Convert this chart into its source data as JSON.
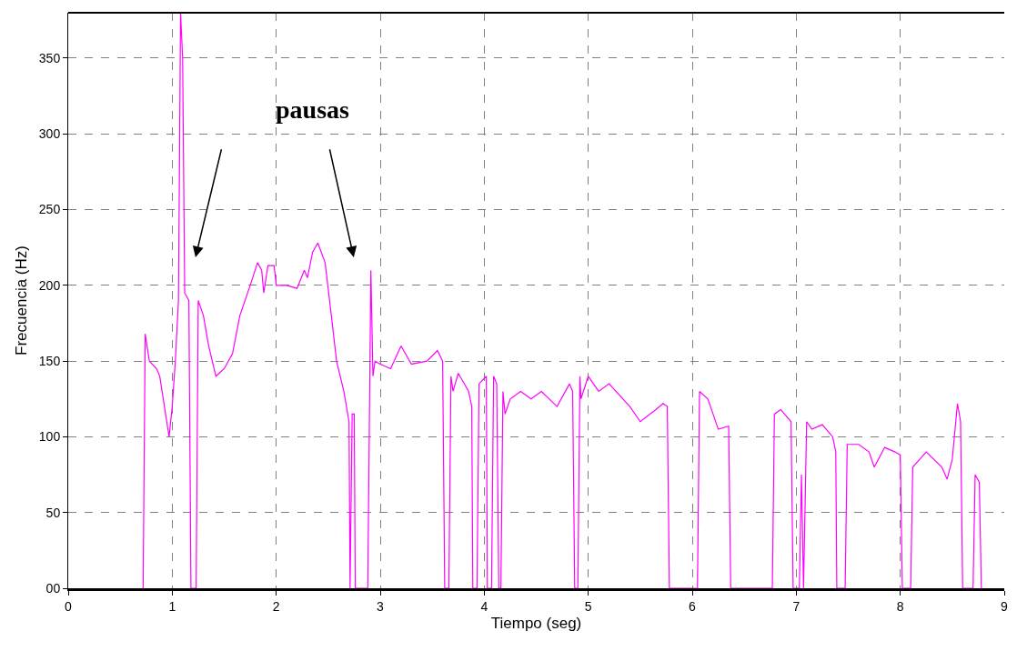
{
  "chart_data": {
    "type": "line",
    "xlabel": "Tiempo (seg)",
    "ylabel": "Frecuencia (Hz)",
    "annotations": [
      "pausas"
    ],
    "x": [
      0.72,
      0.74,
      0.78,
      0.85,
      0.88,
      0.97,
      1.0,
      1.03,
      1.06,
      1.08,
      1.1,
      1.12,
      1.16,
      1.18,
      1.23,
      1.25,
      1.3,
      1.35,
      1.42,
      1.5,
      1.58,
      1.65,
      1.75,
      1.82,
      1.86,
      1.88,
      1.92,
      1.98,
      2.0,
      2.1,
      2.2,
      2.27,
      2.3,
      2.35,
      2.4,
      2.47,
      2.53,
      2.58,
      2.65,
      2.7,
      2.71,
      2.73,
      2.75,
      2.76,
      2.88,
      2.91,
      2.93,
      2.95,
      3.0,
      3.1,
      3.2,
      3.3,
      3.45,
      3.55,
      3.6,
      3.62,
      3.66,
      3.68,
      3.7,
      3.75,
      3.85,
      3.88,
      3.89,
      3.93,
      3.95,
      4.02,
      4.03,
      4.07,
      4.09,
      4.12,
      4.14,
      4.16,
      4.18,
      4.2,
      4.25,
      4.35,
      4.45,
      4.55,
      4.7,
      4.82,
      4.85,
      4.87,
      4.9,
      4.92,
      4.93,
      5.0,
      5.1,
      5.2,
      5.4,
      5.5,
      5.65,
      5.72,
      5.76,
      5.78,
      6.05,
      6.07,
      6.15,
      6.2,
      6.25,
      6.35,
      6.37,
      6.77,
      6.79,
      6.85,
      6.95,
      6.97,
      7.03,
      7.05,
      7.07,
      7.1,
      7.15,
      7.25,
      7.35,
      7.38,
      7.39,
      7.47,
      7.49,
      7.6,
      7.7,
      7.75,
      7.85,
      7.95,
      8.0,
      8.02,
      8.1,
      8.12,
      8.25,
      8.4,
      8.45,
      8.5,
      8.55,
      8.58,
      8.6,
      8.7,
      8.72,
      8.76,
      8.78
    ],
    "series": [
      {
        "color": "#ff00ff",
        "values": [
          0,
          168,
          150,
          145,
          140,
          100,
          120,
          150,
          190,
          380,
          350,
          195,
          190,
          0,
          0,
          190,
          180,
          160,
          140,
          145,
          155,
          180,
          200,
          215,
          210,
          195,
          213,
          213,
          200,
          200,
          198,
          210,
          205,
          222,
          228,
          215,
          180,
          150,
          130,
          110,
          0,
          115,
          115,
          0,
          0,
          210,
          140,
          150,
          148,
          145,
          160,
          148,
          150,
          157,
          150,
          0,
          0,
          140,
          130,
          142,
          130,
          120,
          0,
          0,
          135,
          140,
          0,
          0,
          140,
          135,
          0,
          0,
          130,
          115,
          125,
          130,
          125,
          130,
          120,
          135,
          130,
          0,
          0,
          140,
          125,
          140,
          130,
          135,
          120,
          110,
          118,
          122,
          120,
          0,
          0,
          130,
          125,
          115,
          105,
          107,
          0,
          0,
          115,
          118,
          110,
          0,
          0,
          75,
          0,
          110,
          105,
          108,
          100,
          90,
          0,
          0,
          95,
          95,
          90,
          80,
          93,
          90,
          88,
          0,
          0,
          80,
          90,
          80,
          72,
          85,
          122,
          110,
          0,
          0,
          75,
          70,
          0
        ]
      }
    ],
    "xlim": [
      0,
      9
    ],
    "xticks": [
      0,
      1,
      2,
      3,
      4,
      5,
      6,
      7,
      8,
      9
    ],
    "ylim": [
      0,
      380
    ],
    "yticks": [
      {
        "value": 0,
        "label": "00"
      },
      50,
      100,
      150,
      200,
      250,
      300,
      350
    ],
    "grid": true,
    "marker": "none",
    "line_style": "solid"
  }
}
